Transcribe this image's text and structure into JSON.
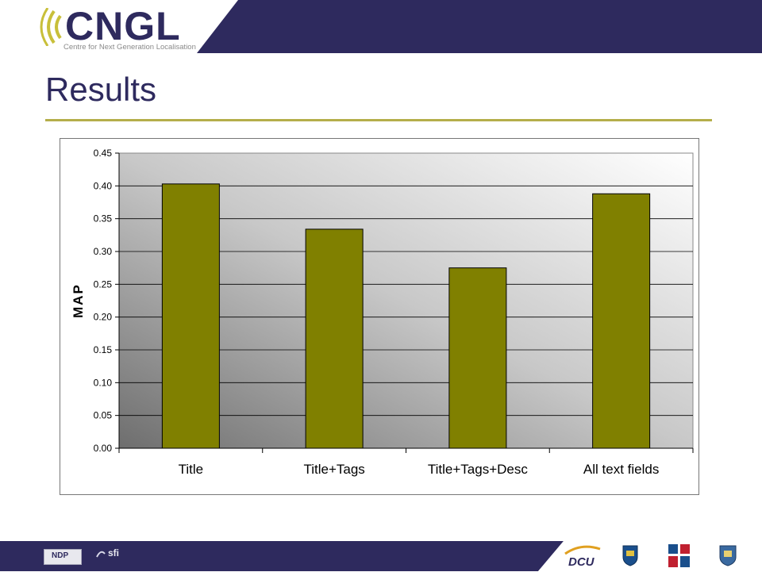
{
  "header": {
    "logo_text": "CNGL",
    "logo_tagline": "Centre for Next Generation Localisation",
    "colors": {
      "navy": "#2e2a5e",
      "olive": "#b5ae4a"
    }
  },
  "slide": {
    "title": "Results"
  },
  "chart_data": {
    "type": "bar",
    "categories": [
      "Title",
      "Title+Tags",
      "Title+Tags+Desc",
      "All text fields"
    ],
    "values": [
      0.403,
      0.334,
      0.275,
      0.388
    ],
    "title": "",
    "xlabel": "",
    "ylabel": "MAP",
    "ylim": [
      0,
      0.45
    ],
    "yticks": [
      "0.00",
      "0.05",
      "0.10",
      "0.15",
      "0.20",
      "0.25",
      "0.30",
      "0.35",
      "0.40",
      "0.45"
    ],
    "grid": true,
    "legend": "none",
    "bar_color": "#808000"
  },
  "footer": {
    "logos": [
      "NDP",
      "sfi",
      "DCU",
      "UCD",
      "TCD",
      "UL"
    ],
    "logo_icons": [
      "ndp-logo-icon",
      "sfi-logo-icon",
      "dcu-logo-icon",
      "ucd-crest-icon",
      "tcd-logo-icon",
      "ul-crest-icon"
    ]
  }
}
